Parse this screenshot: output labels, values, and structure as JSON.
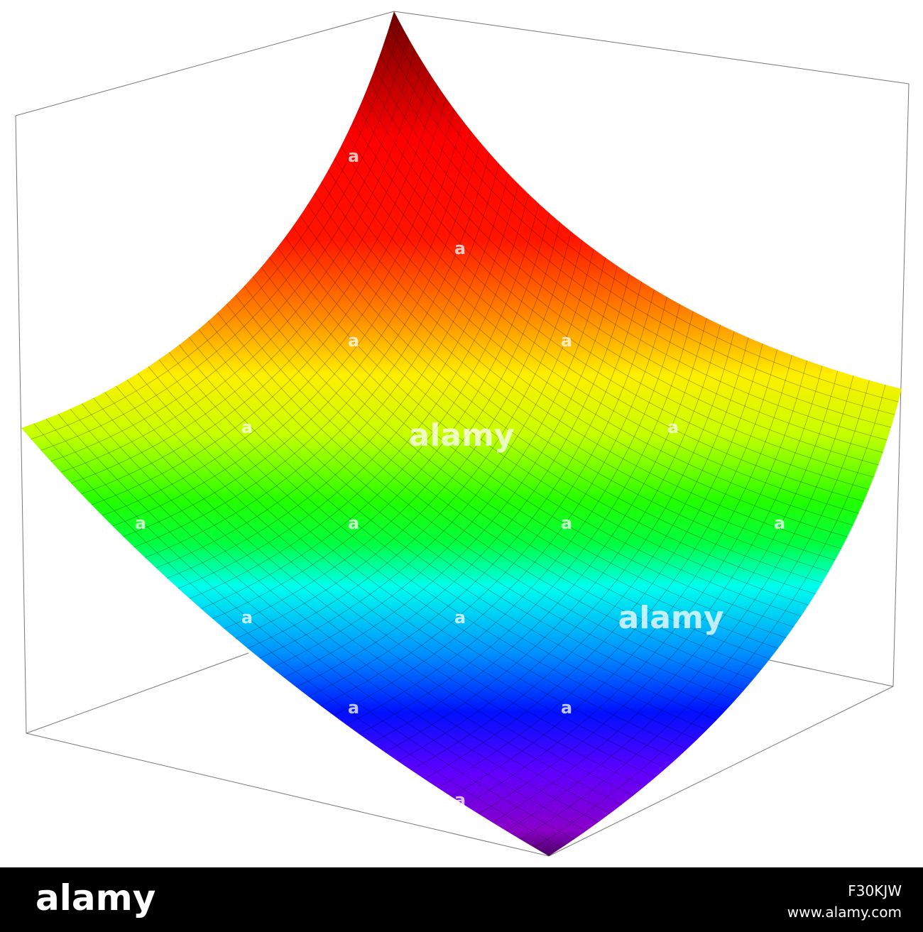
{
  "watermark": {
    "logo": "alamy",
    "mark": "a"
  },
  "footer": {
    "logo": "alamy",
    "image_id": "F30KJW",
    "url": "www.alamy.com"
  }
}
